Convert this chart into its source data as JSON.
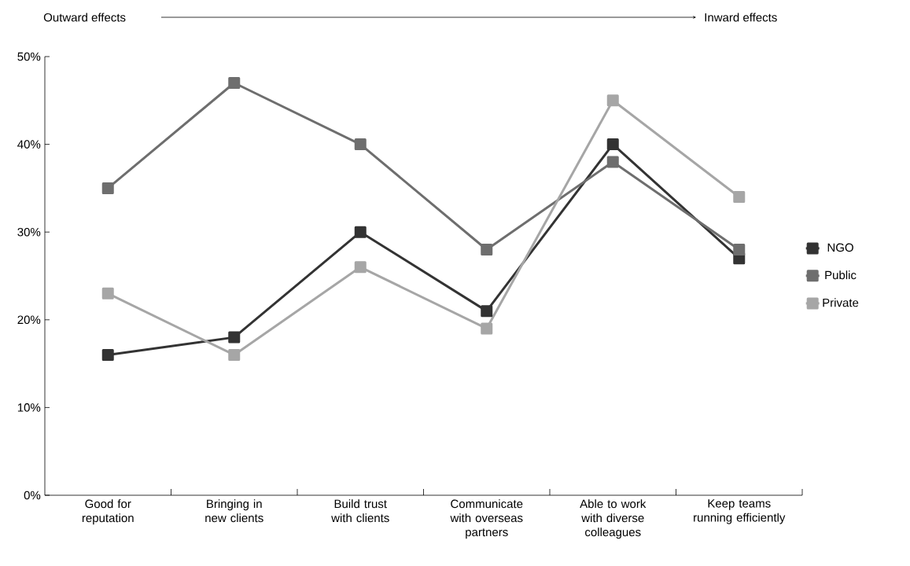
{
  "chart_data": {
    "type": "line",
    "categories": [
      "Good for reputation",
      "Bringing in new clients",
      "Build trust with clients",
      "Communicate with overseas partners",
      "Able to work with diverse colleagues",
      "Keep teams running efficiently"
    ],
    "series": [
      {
        "name": "NGO",
        "color": "#333333",
        "values": [
          16,
          18,
          30,
          21,
          40,
          27
        ]
      },
      {
        "name": "Public",
        "color": "#6e6e6e",
        "values": [
          35,
          47,
          40,
          28,
          38,
          28
        ]
      },
      {
        "name": "Private",
        "color": "#a6a6a6",
        "values": [
          23,
          16,
          26,
          19,
          45,
          34
        ]
      }
    ],
    "ylim": [
      0,
      50
    ],
    "yticks": [
      {
        "value": 0,
        "label": "0%"
      },
      {
        "value": 10,
        "label": "10%"
      },
      {
        "value": 20,
        "label": "20%"
      },
      {
        "value": 30,
        "label": "30%"
      },
      {
        "value": 40,
        "label": "40%"
      },
      {
        "value": 50,
        "label": "50%"
      }
    ],
    "annotations": [
      "Outward effects",
      "Inward effects"
    ],
    "marker": "square",
    "line_style": "solid",
    "legend": "right",
    "grid": false
  }
}
